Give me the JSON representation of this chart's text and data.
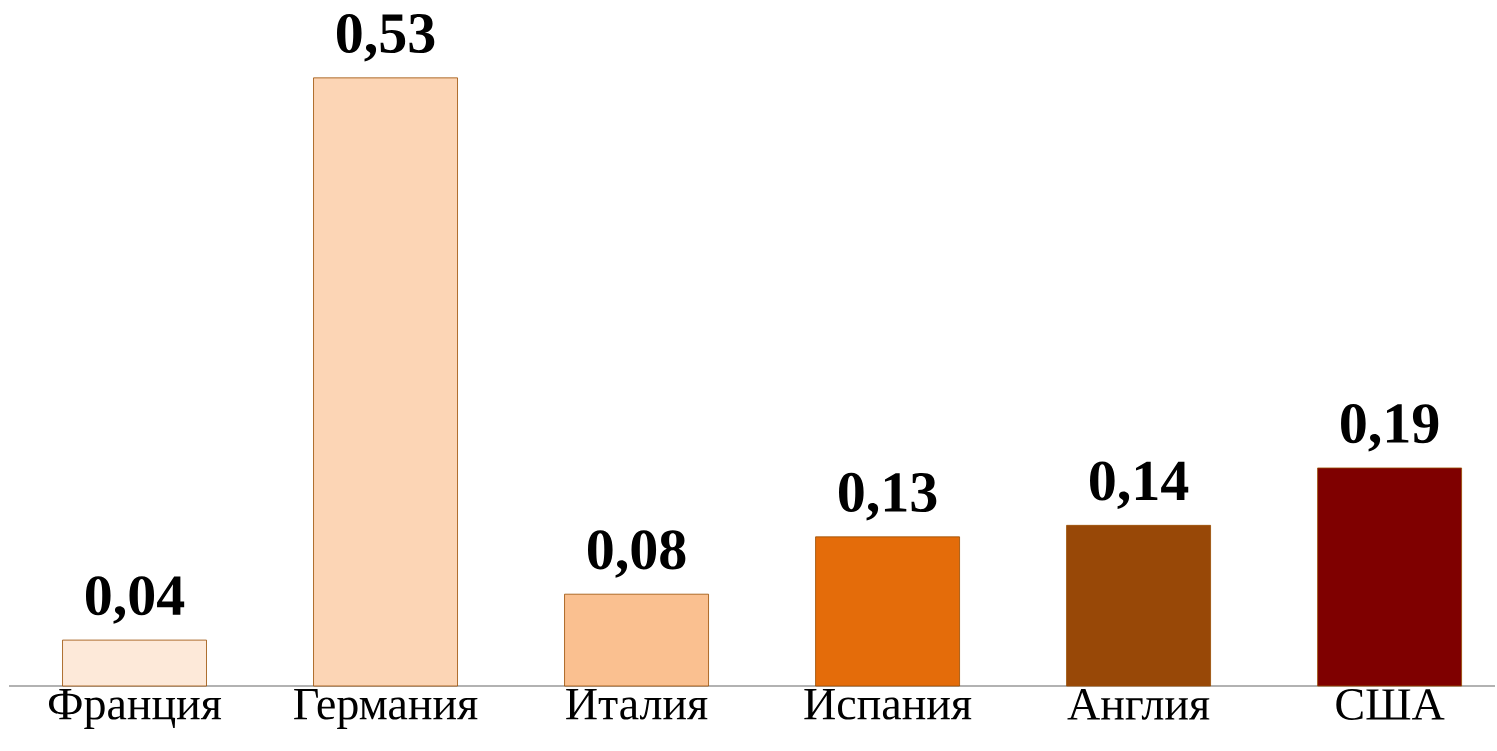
{
  "chart_data": {
    "type": "bar",
    "categories": [
      "Франция",
      "Германия",
      "Италия",
      "Испания",
      "Англия",
      "США"
    ],
    "values": [
      0.04,
      0.53,
      0.08,
      0.13,
      0.14,
      0.19
    ],
    "value_labels": [
      "0,04",
      "0,53",
      "0,08",
      "0,13",
      "0,14",
      "0,19"
    ],
    "colors": [
      "#fde9d9",
      "#fcd5b5",
      "#fac090",
      "#e46c0a",
      "#984807",
      "#7f0000"
    ],
    "tick_labels": "x"
  }
}
